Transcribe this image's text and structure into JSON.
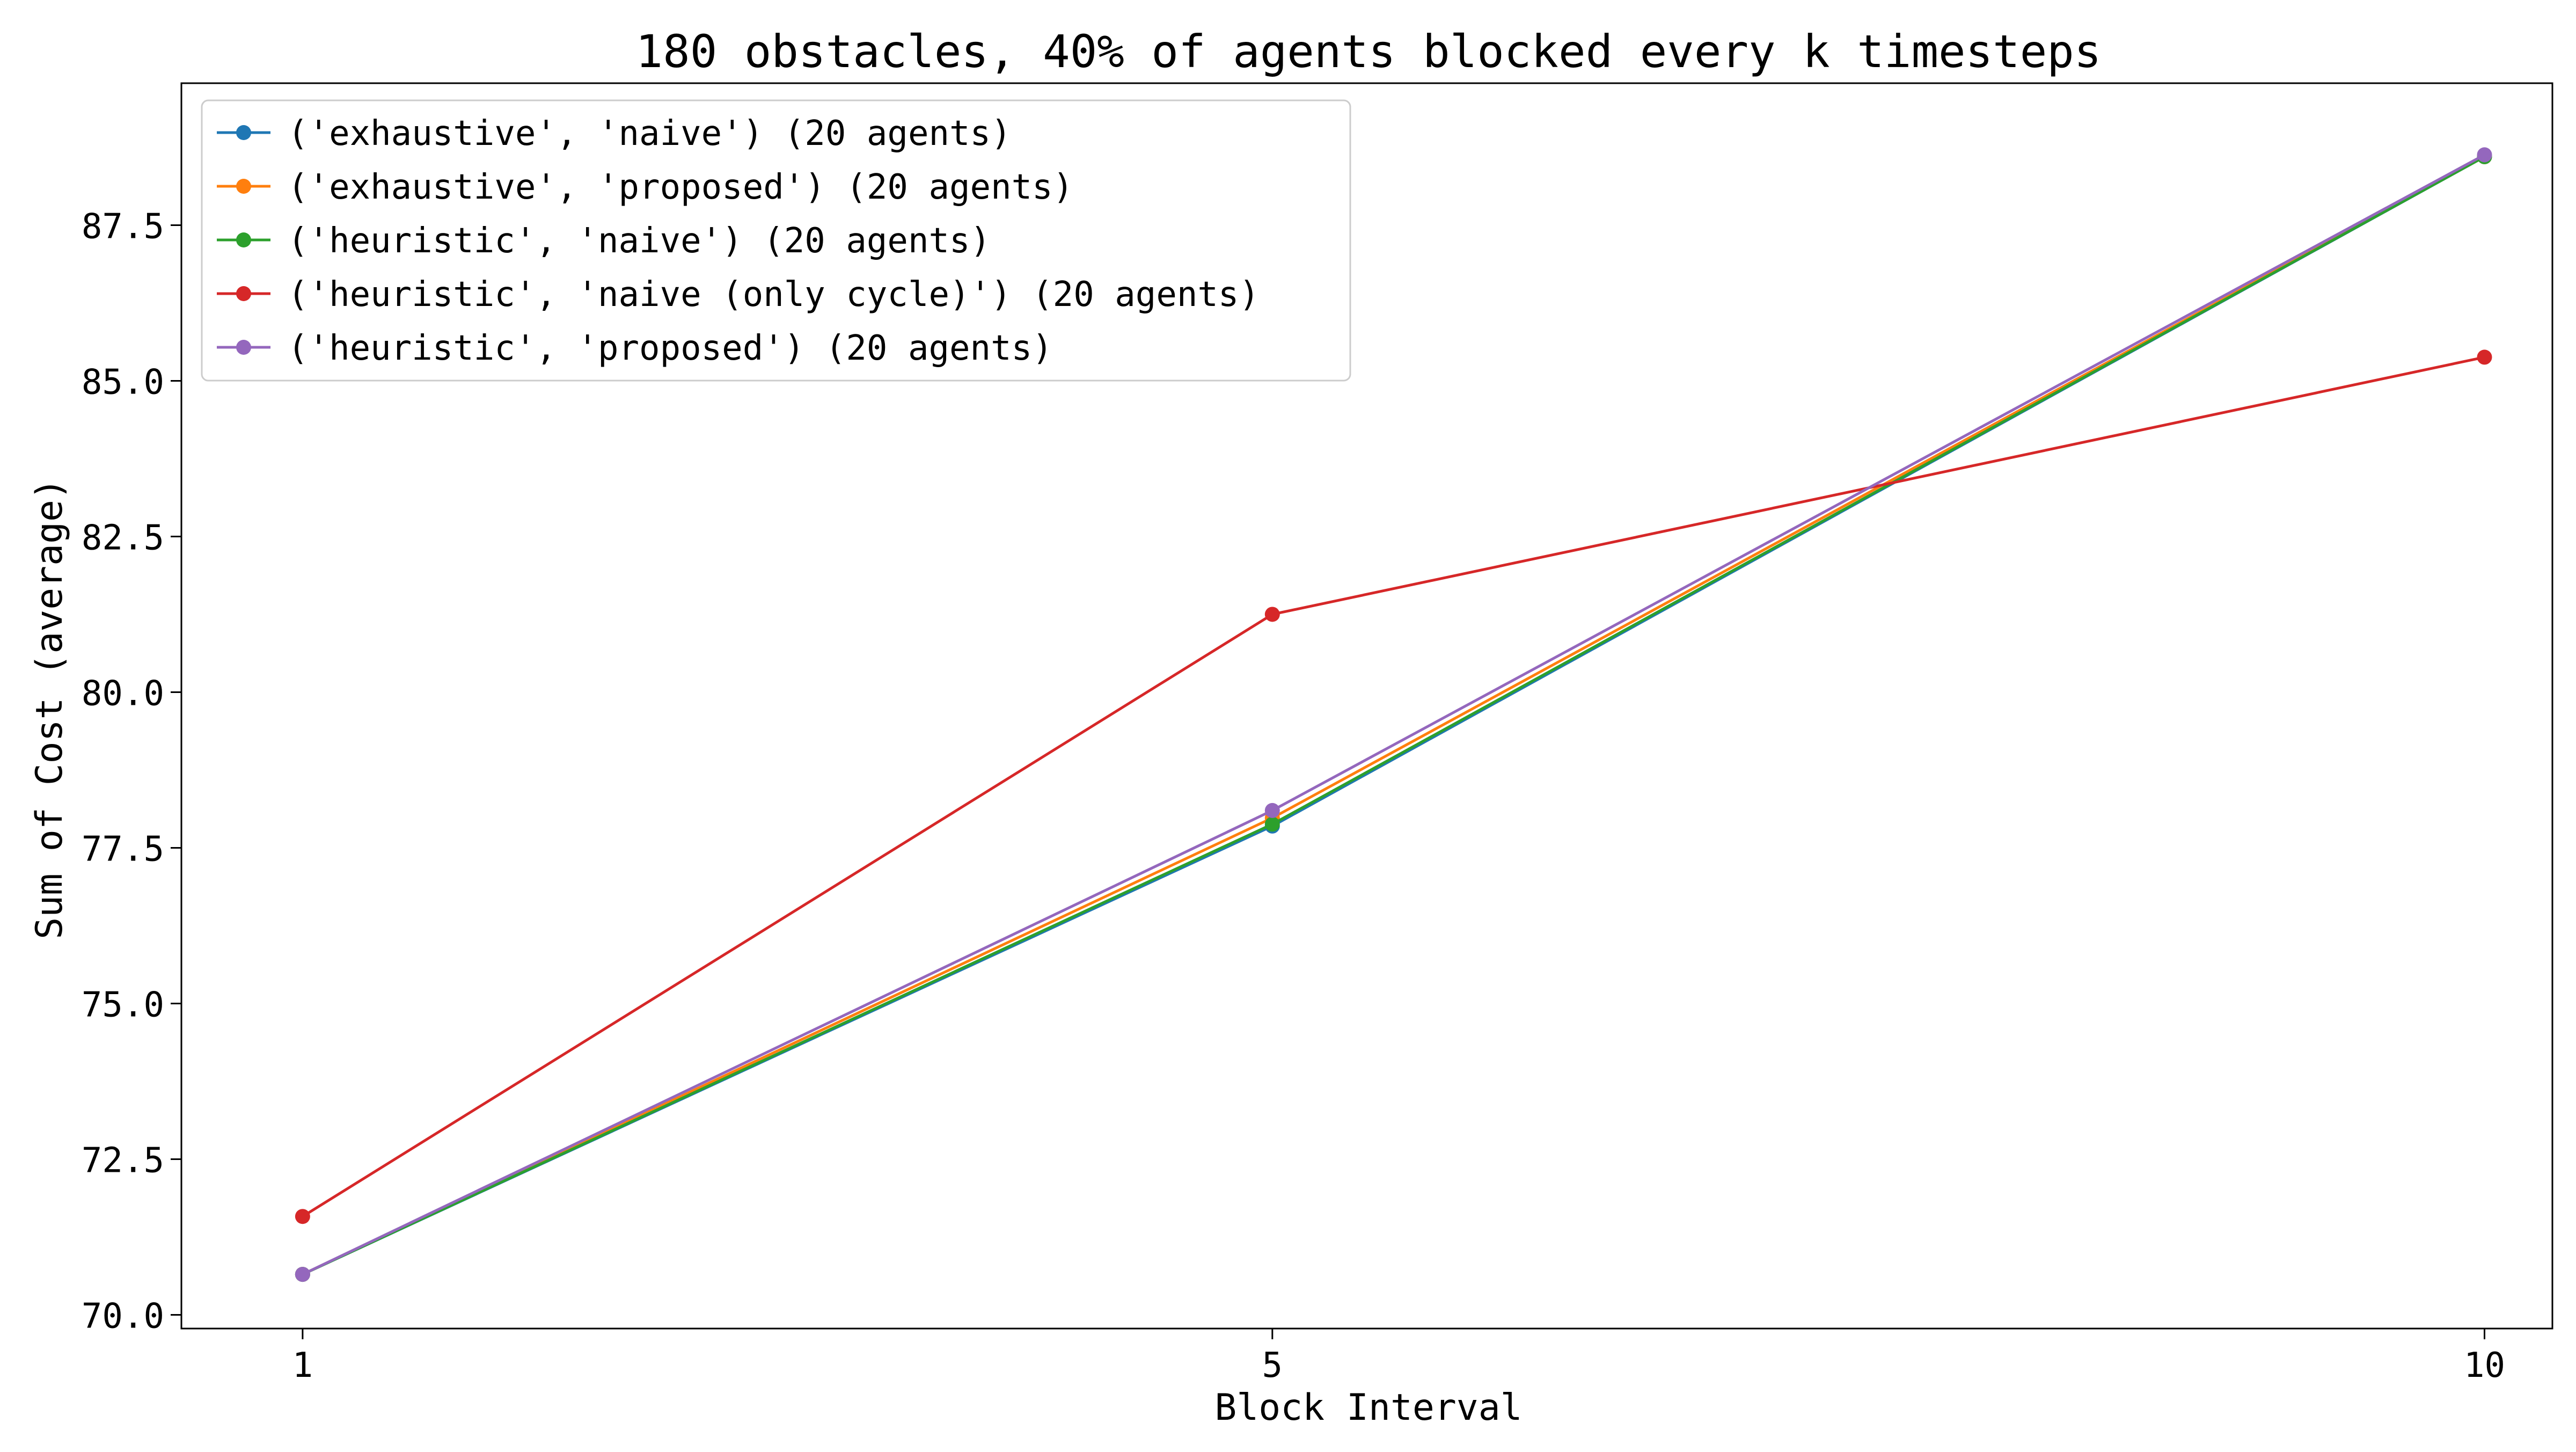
{
  "chart_data": {
    "type": "line",
    "title": "180 obstacles, 40% of agents blocked every k timesteps",
    "xlabel": "Block Interval",
    "ylabel": "Sum of Cost (average)",
    "x": [
      1,
      5,
      10
    ],
    "xticks": [
      "1",
      "5",
      "10"
    ],
    "xlim": [
      0.5,
      10.28
    ],
    "ylim": [
      69.78,
      89.78
    ],
    "yticks": [
      70.0,
      72.5,
      75.0,
      77.5,
      80.0,
      82.5,
      85.0,
      87.5
    ],
    "ytick_labels": [
      "70.0",
      "72.5",
      "75.0",
      "77.5",
      "80.0",
      "82.5",
      "85.0",
      "87.5"
    ],
    "grid": false,
    "legend_position": "top-left",
    "series": [
      {
        "name": "('exhaustive', 'naive') (20 agents)",
        "color": "#1f77b4",
        "values": [
          70.65,
          77.85,
          88.6
        ]
      },
      {
        "name": "('exhaustive', 'proposed') (20 agents)",
        "color": "#ff7f0e",
        "values": [
          70.65,
          77.98,
          88.6
        ]
      },
      {
        "name": "('heuristic', 'naive') (20 agents)",
        "color": "#2ca02c",
        "values": [
          70.65,
          77.88,
          88.6
        ]
      },
      {
        "name": "('heuristic', 'naive (only cycle)') (20 agents)",
        "color": "#d62728",
        "values": [
          71.58,
          81.25,
          85.38
        ]
      },
      {
        "name": "('heuristic', 'proposed') (20 agents)",
        "color": "#9467bd",
        "values": [
          70.65,
          78.1,
          88.63
        ]
      }
    ]
  }
}
